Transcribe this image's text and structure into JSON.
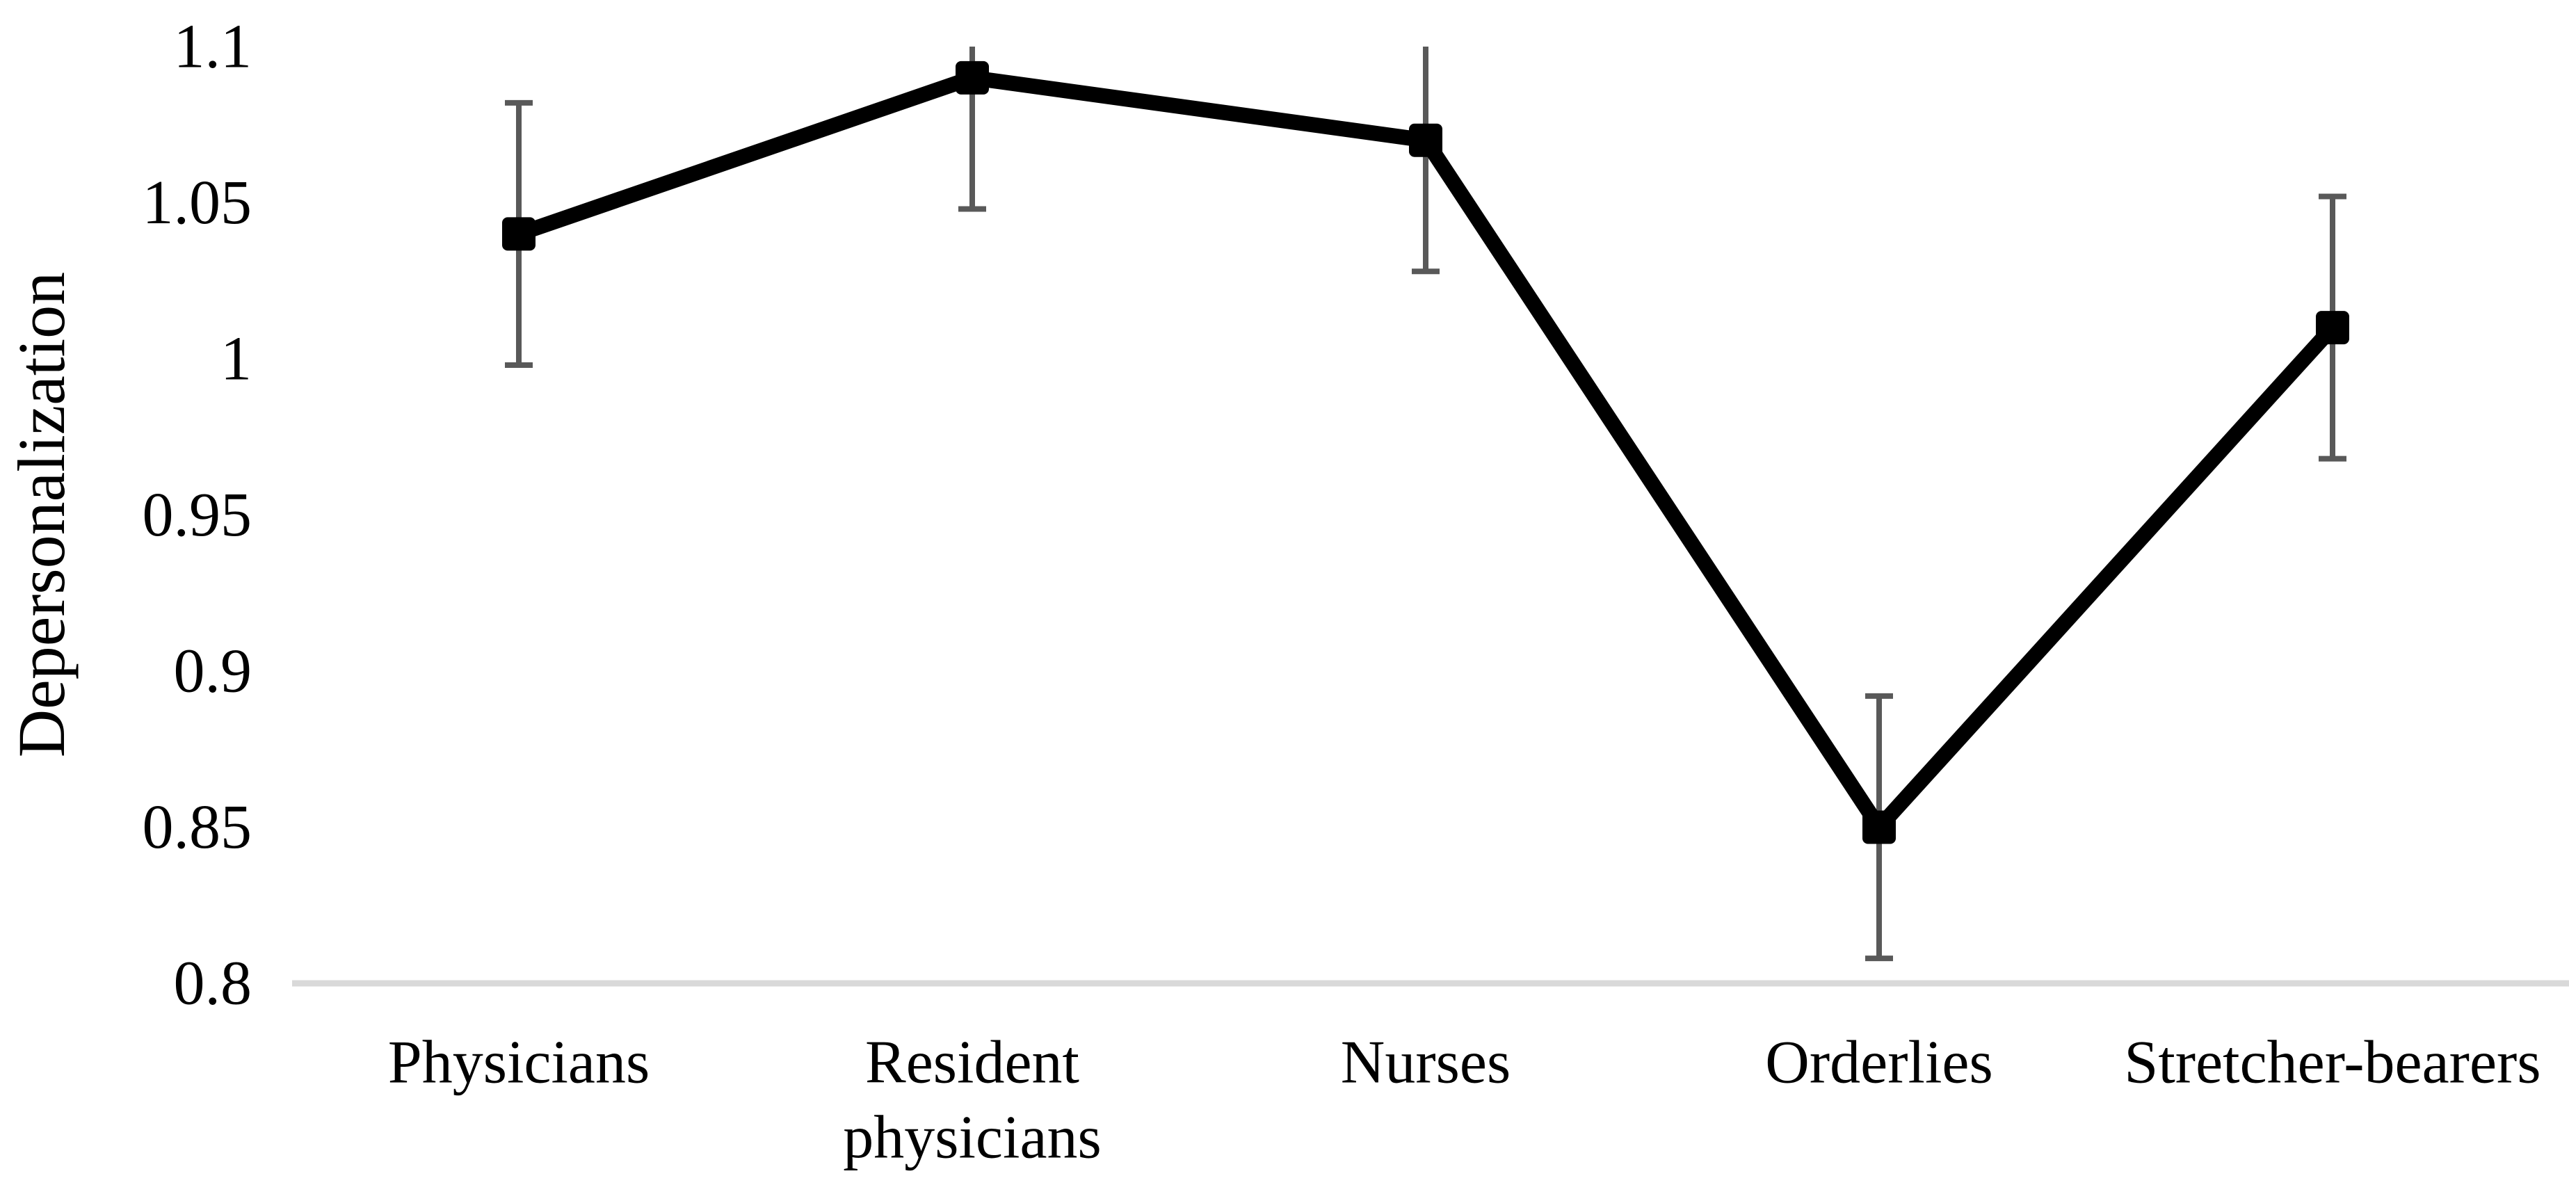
{
  "chart_data": {
    "type": "line",
    "title": "",
    "xlabel": "",
    "ylabel": "Depersonalization",
    "categories": [
      "Physicians",
      "Resident physicians",
      "Nurses",
      "Orderlies",
      "Stretcher-bearers"
    ],
    "category_label_lines": [
      [
        "Physicians"
      ],
      [
        "Resident",
        "physicians"
      ],
      [
        "Nurses"
      ],
      [
        "Orderlies"
      ],
      [
        "Stretcher-bearers"
      ]
    ],
    "series": [
      {
        "name": "Depersonalization",
        "values": [
          1.04,
          1.09,
          1.07,
          0.85,
          1.01
        ]
      }
    ],
    "error_bars": {
      "lower": [
        0.998,
        1.048,
        1.028,
        0.808,
        0.968
      ],
      "upper": [
        1.082,
        1.132,
        1.112,
        0.892,
        1.052
      ],
      "upper_clipped_at_plot_top": [
        false,
        true,
        true,
        false,
        false
      ]
    },
    "ylim": [
      0.8,
      1.1
    ],
    "yticks": [
      1.1,
      1.05,
      1.0,
      0.95,
      0.9,
      0.85,
      0.8
    ],
    "ytick_labels": [
      "1.1",
      "1.05",
      "1",
      "0.95",
      "0.9",
      "0.85",
      "0.8"
    ],
    "grid": false,
    "legend": "none",
    "marker": "square",
    "colors": {
      "line": "#000000",
      "marker": "#000000",
      "error_bar": "#595959",
      "axis_line": "#d9d9d9",
      "text": "#000000",
      "background": "#ffffff"
    }
  }
}
